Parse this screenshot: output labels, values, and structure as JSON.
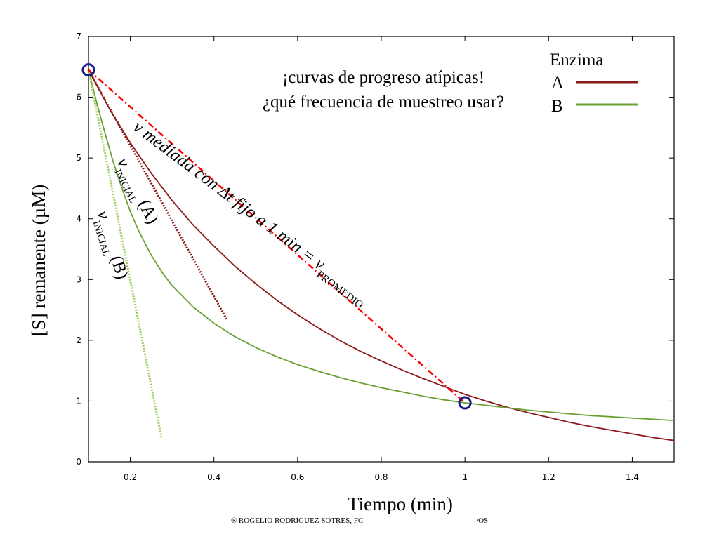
{
  "chart_data": {
    "type": "line",
    "xlabel": "Tiempo (min)",
    "ylabel": "[S] remanente (µM)",
    "xlim": [
      0.1,
      1.5
    ],
    "ylim": [
      0,
      7
    ],
    "x_ticks": [
      0.2,
      0.4,
      0.6,
      0.8,
      1,
      1.2,
      1.4
    ],
    "y_ticks": [
      0,
      1,
      2,
      3,
      4,
      5,
      6,
      7
    ],
    "grid": false,
    "legend": {
      "title": "Enzima",
      "position": "top-right",
      "entries": [
        {
          "label": "A",
          "color": "#8b1a1a"
        },
        {
          "label": "B",
          "color": "#6aa032"
        }
      ]
    },
    "series": [
      {
        "name": "A",
        "color": "#8b1a1a",
        "style": "solid",
        "x": [
          0.1,
          0.15,
          0.2,
          0.25,
          0.3,
          0.35,
          0.4,
          0.45,
          0.5,
          0.55,
          0.6,
          0.65,
          0.7,
          0.75,
          0.8,
          0.85,
          0.9,
          0.95,
          1.0,
          1.05,
          1.1,
          1.15,
          1.2,
          1.25,
          1.3,
          1.35,
          1.4,
          1.45,
          1.5
        ],
        "values": [
          6.45,
          5.81,
          5.25,
          4.75,
          4.3,
          3.9,
          3.55,
          3.22,
          2.93,
          2.66,
          2.42,
          2.2,
          2.0,
          1.82,
          1.66,
          1.51,
          1.37,
          1.24,
          1.11,
          1.0,
          0.9,
          0.81,
          0.73,
          0.65,
          0.58,
          0.52,
          0.46,
          0.4,
          0.35
        ]
      },
      {
        "name": "B",
        "color": "#6aa032",
        "style": "solid",
        "x": [
          0.1,
          0.12,
          0.14,
          0.16,
          0.18,
          0.2,
          0.22,
          0.25,
          0.28,
          0.3,
          0.35,
          0.4,
          0.45,
          0.5,
          0.55,
          0.6,
          0.65,
          0.7,
          0.75,
          0.8,
          0.85,
          0.9,
          0.95,
          1.0,
          1.05,
          1.1,
          1.15,
          1.2,
          1.25,
          1.3,
          1.35,
          1.4,
          1.45,
          1.5
        ],
        "values": [
          6.45,
          5.9,
          5.4,
          4.92,
          4.5,
          4.12,
          3.8,
          3.4,
          3.08,
          2.9,
          2.55,
          2.28,
          2.06,
          1.88,
          1.73,
          1.6,
          1.49,
          1.39,
          1.3,
          1.22,
          1.15,
          1.08,
          1.02,
          0.97,
          0.93,
          0.89,
          0.85,
          0.82,
          0.79,
          0.76,
          0.74,
          0.72,
          0.7,
          0.68
        ]
      },
      {
        "name": "",
        "color": "#8b1a1a",
        "style": "dotted",
        "x": [
          0.1,
          0.43
        ],
        "values": [
          6.45,
          2.35
        ]
      },
      {
        "name": "",
        "color": "#9acd5a",
        "style": "dotted",
        "x": [
          0.1,
          0.275
        ],
        "values": [
          6.45,
          0.38
        ]
      },
      {
        "name": "",
        "color": "#ff0000",
        "style": "dashdot",
        "x": [
          0.1,
          1.0
        ],
        "values": [
          6.45,
          0.97
        ]
      }
    ],
    "markers": [
      {
        "x": 0.1,
        "y": 6.45,
        "color": "#1a1a8c"
      },
      {
        "x": 1.0,
        "y": 0.97,
        "color": "#1a1a8c"
      }
    ],
    "annotations": {
      "title_line1": "¡curvas de progreso atípicas!",
      "title_line2": "¿qué frecuencia de muestreo usar?",
      "v_mediada": "v mediada con Δt fijo a 1 min = v",
      "v_mediada_sub": "PROMEDIO",
      "v_inicial_a": "v",
      "v_inicial_a_sub": "INICIAL",
      "v_inicial_a_paren": "(A)",
      "v_inicial_b": "v",
      "v_inicial_b_sub": "INICIAL",
      "v_inicial_b_paren": "(B)"
    }
  },
  "copyright": "® ROGELIO RODRÍGUEZ SOTRES, FC                                          ESERVADOS"
}
